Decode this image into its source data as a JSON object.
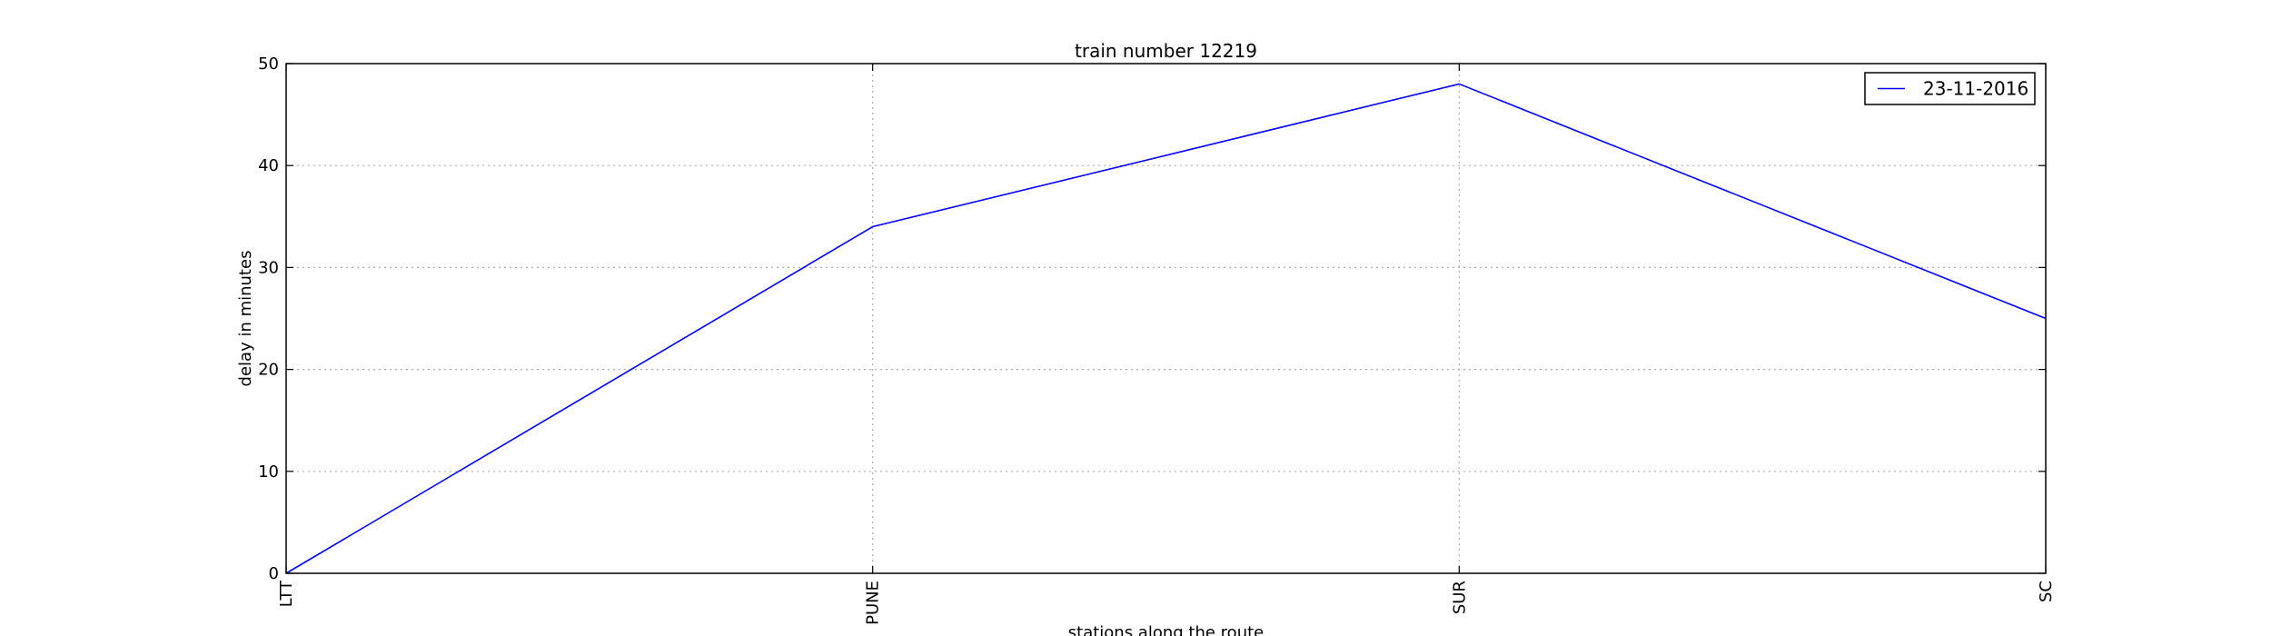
{
  "chart_data": {
    "type": "line",
    "title": "train number 12219",
    "xlabel": "stations along the route",
    "ylabel": "delay in minutes",
    "categories": [
      "LTT",
      "PUNE",
      "SUR",
      "SC"
    ],
    "ylim": [
      0,
      50
    ],
    "yticks": [
      0,
      10,
      20,
      30,
      40,
      50
    ],
    "grid": true,
    "legend_position": "top-right",
    "series": [
      {
        "name": "23-11-2016",
        "values": [
          0,
          34,
          48,
          25
        ],
        "color": "#0000ff"
      }
    ]
  }
}
